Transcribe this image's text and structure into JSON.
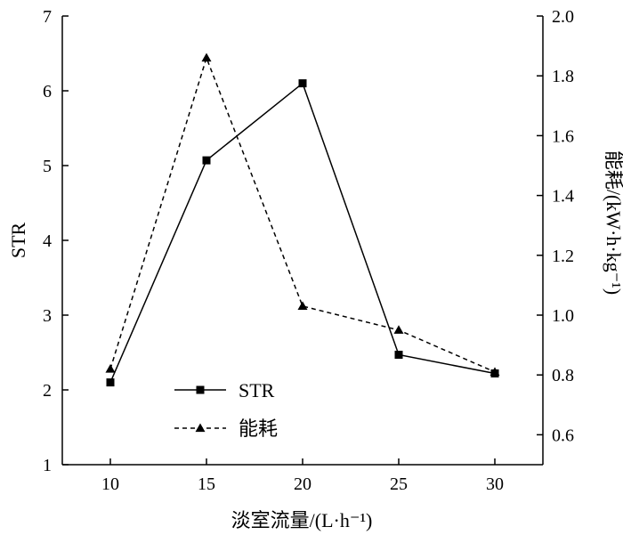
{
  "chart_data": {
    "type": "line",
    "xlabel": "淡室流量/(L·h⁻¹)",
    "ylabel_left": "STR",
    "ylabel_right": "能耗/(kW·h·kg⁻¹)",
    "x": [
      10,
      15,
      20,
      25,
      30
    ],
    "x_ticks": [
      "10",
      "15",
      "20",
      "25",
      "30"
    ],
    "xlim": [
      7.5,
      32.5
    ],
    "ylim_left": [
      1,
      7
    ],
    "yticks_left": [
      "1",
      "2",
      "3",
      "4",
      "5",
      "6",
      "7"
    ],
    "ylim_right": [
      0.5,
      2.0
    ],
    "yticks_right": [
      "0.6",
      "0.8",
      "1.0",
      "1.2",
      "1.4",
      "1.6",
      "1.8",
      "2.0"
    ],
    "series": [
      {
        "name": "STR",
        "axis": "left",
        "marker": "square",
        "line_style": "solid",
        "values": [
          2.1,
          5.07,
          6.1,
          2.47,
          2.22
        ]
      },
      {
        "name": "能耗",
        "axis": "right",
        "marker": "triangle",
        "line_style": "dashed",
        "values": [
          0.82,
          1.86,
          1.03,
          0.95,
          0.81
        ]
      }
    ],
    "legend_position": "lower-left",
    "grid": false
  }
}
